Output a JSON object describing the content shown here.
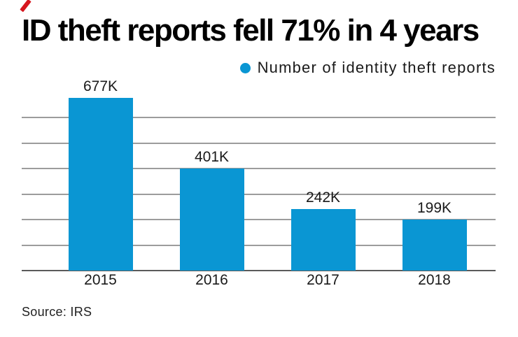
{
  "header": {
    "title": "ID theft reports fell 71% in 4 years",
    "accent_color": "#d6161e"
  },
  "legend": {
    "marker_color": "#0a96d3",
    "label": "Number of identity theft reports"
  },
  "chart_data": {
    "type": "bar",
    "title": "ID theft reports fell 71% in 4 years",
    "categories": [
      "2015",
      "2016",
      "2017",
      "2018"
    ],
    "values": [
      677000,
      401000,
      242000,
      199000
    ],
    "value_labels": [
      "677K",
      "401K",
      "242K",
      "199K"
    ],
    "series_name": "Number of identity theft reports",
    "bar_color": "#0a96d3",
    "gridline_color": "#9c9c9c",
    "axis_color": "#5a5a5a",
    "ylim": [
      0,
      700000
    ],
    "gridline_interval": 100000,
    "grid": "horizontal-only",
    "legend_position": "top-right",
    "xlabel": "",
    "ylabel": ""
  },
  "footer": {
    "source": "Source: IRS"
  }
}
